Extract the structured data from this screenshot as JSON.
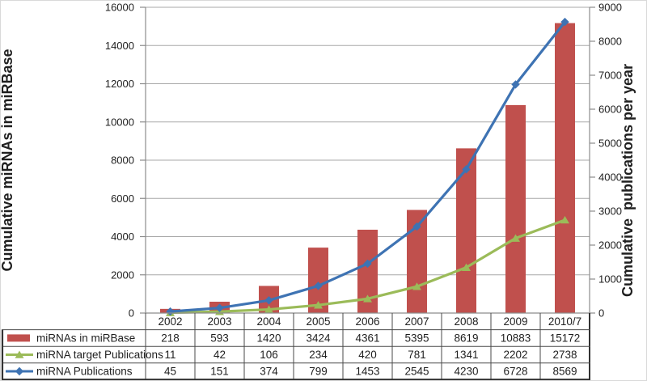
{
  "chart_data": {
    "type": "bar",
    "title": "",
    "categories": [
      "2002",
      "2003",
      "2004",
      "2005",
      "2006",
      "2007",
      "2008",
      "2009",
      "2010/7"
    ],
    "series": [
      {
        "name": "miRNAs in miRBase",
        "type": "bar",
        "axis": "left",
        "marker": "rect",
        "color": "#C0504D",
        "values": [
          218,
          593,
          1420,
          3424,
          4361,
          5395,
          8619,
          10883,
          15172
        ]
      },
      {
        "name": "miRNA target Publications",
        "type": "line",
        "axis": "right",
        "marker": "triangle",
        "color": "#9BBB59",
        "values": [
          11,
          42,
          106,
          234,
          420,
          781,
          1341,
          2202,
          2738
        ]
      },
      {
        "name": "miRNA Publications",
        "type": "line",
        "axis": "right",
        "marker": "diamond",
        "color": "#3E73B3",
        "values": [
          45,
          151,
          374,
          799,
          1453,
          2545,
          4230,
          6728,
          8569
        ]
      }
    ],
    "xlabel": "",
    "ylabel_left": "Cumulative miRNAs in miRBase",
    "ylabel_right": "Cumulative  publications per year",
    "left_axis": {
      "min": 0,
      "max": 16000,
      "step": 2000
    },
    "right_axis": {
      "min": 0,
      "max": 9000,
      "step": 1000
    },
    "grid": true,
    "legend_position": "data-table",
    "colors": {
      "bar": "#C0504D",
      "line_blue": "#3E73B3",
      "line_green": "#9BBB59",
      "gridline": "#A8A8A8",
      "axis_line": "#8C8C8C",
      "table_border": "#4A4A4A",
      "table_outer_border": "#333333",
      "text": "#1f1f1f"
    }
  }
}
